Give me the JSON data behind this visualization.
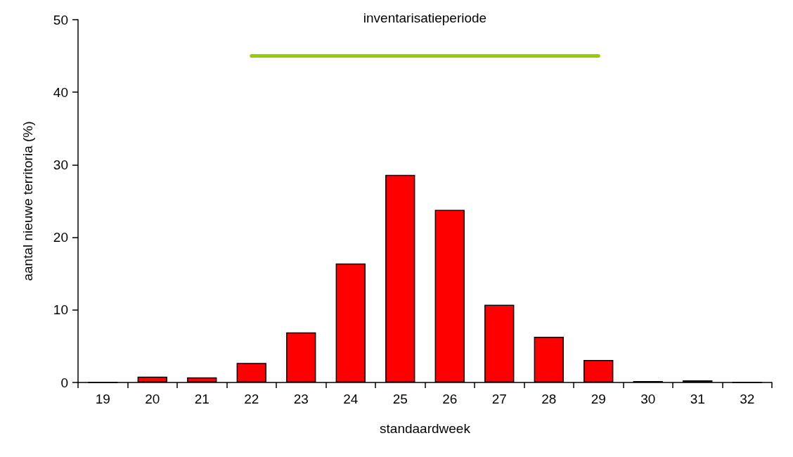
{
  "chart_data": {
    "type": "bar",
    "xlabel": "standaardweek",
    "ylabel": "aantal nieuwe territoria (%)",
    "categories": [
      "19",
      "20",
      "21",
      "22",
      "23",
      "24",
      "25",
      "26",
      "27",
      "28",
      "29",
      "30",
      "31",
      "32"
    ],
    "series": [
      {
        "color": "#ff0000",
        "values": [
          0,
          0.8,
          0.7,
          2.7,
          6.9,
          16.4,
          28.6,
          23.8,
          10.7,
          6.3,
          3.1,
          0.2,
          0.3,
          0
        ]
      },
      {
        "type": "line",
        "color": "#99cc00",
        "values": [
          null,
          null,
          null,
          45,
          45,
          45,
          45,
          45,
          45,
          45,
          45,
          null,
          null,
          null
        ]
      }
    ],
    "annotations": [
      "inventarisatieperiode"
    ],
    "ylim": [
      0,
      50
    ],
    "yticks": [
      0,
      10,
      20,
      30,
      40,
      50
    ],
    "grid": false
  }
}
